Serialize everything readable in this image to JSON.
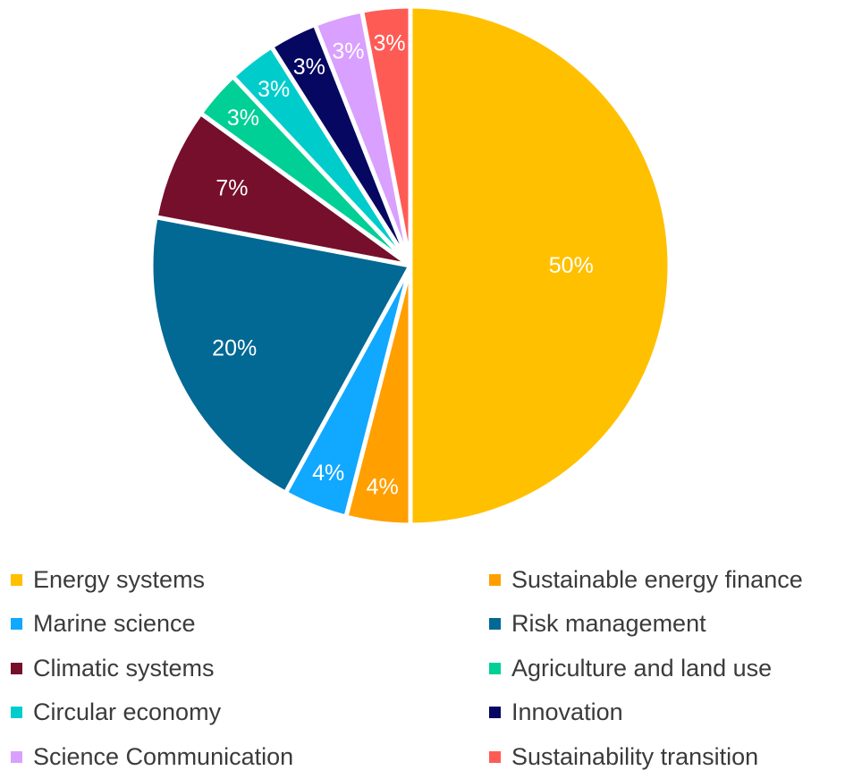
{
  "chart_data": {
    "type": "pie",
    "categories": [
      "Energy systems",
      "Sustainable energy finance",
      "Marine science",
      "Risk management",
      "Climatic systems",
      "Agriculture and land use",
      "Circular economy",
      "Innovation",
      "Science Communication",
      "Sustainability transition"
    ],
    "values": [
      50,
      4,
      4,
      20,
      7,
      3,
      3,
      3,
      3,
      3
    ],
    "data_labels": [
      "50%",
      "4%",
      "4%",
      "20%",
      "7%",
      "3%",
      "3%",
      "3%",
      "3%",
      "3%"
    ],
    "colors": [
      "#FFC000",
      "#FF9F00",
      "#11A8FF",
      "#026894",
      "#760F2C",
      "#00CF96",
      "#00CCCC",
      "#050761",
      "#D9A0FF",
      "#FF5B55"
    ],
    "start_angle_deg": 0,
    "direction": "clockwise",
    "legend_position": "bottom",
    "legend_columns": 2
  }
}
